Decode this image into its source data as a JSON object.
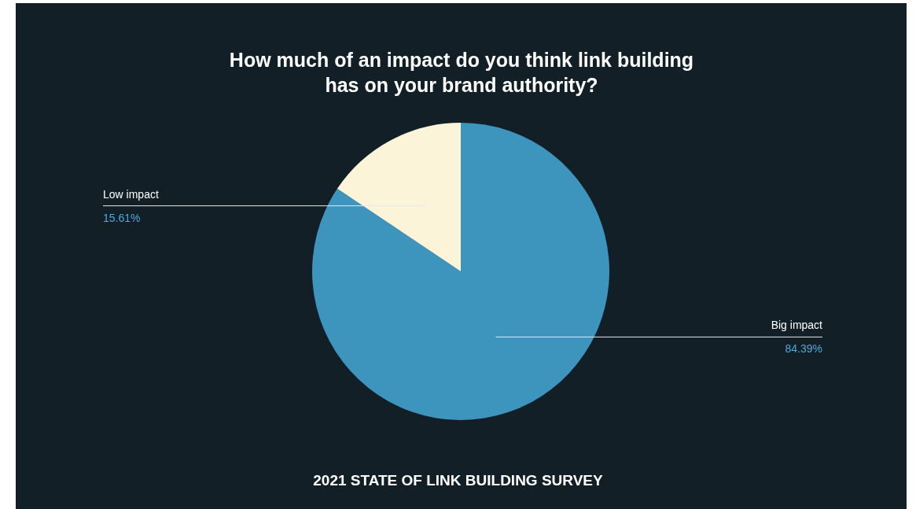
{
  "chart_data": {
    "type": "pie",
    "title": "How much of an impact do you think link building has on your brand authority?",
    "categories": [
      "Big impact",
      "Low impact"
    ],
    "values": [
      84.39,
      15.61
    ],
    "value_labels": [
      "84.39%",
      "15.61%"
    ],
    "colors": [
      "#3d94bd",
      "#fcf4d9"
    ],
    "legend": false,
    "annotations": [
      "2021 STATE OF LINK BUILDING SURVEY"
    ]
  }
}
